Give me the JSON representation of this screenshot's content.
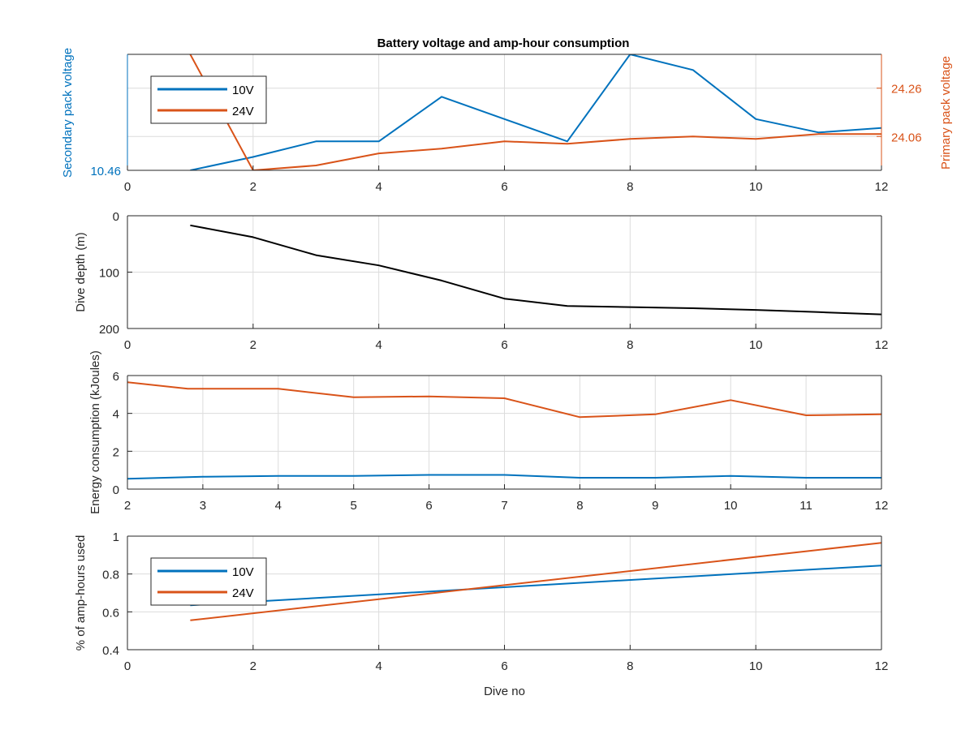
{
  "figure_title": "Battery voltage and amp-hour consumption",
  "colors": {
    "blue": "#0072BD",
    "orange": "#D95319",
    "black": "#000000",
    "grid": "#dcdcdc"
  },
  "chart_data": [
    {
      "type": "line",
      "title": "Battery voltage and amp-hour consumption",
      "xlabel": "",
      "ylabel_left": "Secondary pack voltage",
      "ylabel_right": "Primary pack voltage",
      "xlim": [
        0,
        12
      ],
      "xticks": [
        "0",
        "2",
        "4",
        "6",
        "8",
        "10",
        "12"
      ],
      "ylim_left": [
        10.46,
        10.72
      ],
      "yticks_left": [
        "10.46"
      ],
      "ylim_right": [
        23.92,
        24.4
      ],
      "yticks_right": [
        "24.06",
        "24.26"
      ],
      "grid": true,
      "legend": {
        "position": "top-left",
        "entries": [
          "10V",
          "24V"
        ]
      },
      "series": [
        {
          "name": "10V",
          "axis": "left",
          "color": "#0072BD",
          "x": [
            1,
            2,
            3,
            4,
            5,
            6,
            7,
            8,
            9,
            10,
            11,
            12
          ],
          "y": [
            10.46,
            10.49,
            10.525,
            10.525,
            10.625,
            10.575,
            10.525,
            10.72,
            10.685,
            10.575,
            10.545,
            10.555
          ]
        },
        {
          "name": "24V",
          "axis": "right",
          "color": "#D95319",
          "x": [
            1,
            2,
            3,
            4,
            5,
            6,
            7,
            8,
            9,
            10,
            11,
            12
          ],
          "y": [
            24.4,
            23.92,
            23.94,
            23.99,
            24.01,
            24.04,
            24.03,
            24.05,
            24.06,
            24.05,
            24.07,
            24.07
          ]
        }
      ]
    },
    {
      "type": "line",
      "xlabel": "",
      "ylabel": "Dive depth (m)",
      "xlim": [
        0,
        12
      ],
      "xticks": [
        "0",
        "2",
        "4",
        "6",
        "8",
        "10",
        "12"
      ],
      "ylim": [
        200,
        0
      ],
      "y_reversed": true,
      "yticks": [
        "0",
        "100",
        "200"
      ],
      "grid": true,
      "series": [
        {
          "color": "#000000",
          "x": [
            1,
            2,
            3,
            4,
            5,
            6,
            7,
            8,
            9,
            10,
            11,
            12
          ],
          "y": [
            17,
            38,
            70,
            88,
            115,
            147,
            160,
            162,
            164,
            167,
            171,
            175
          ]
        }
      ]
    },
    {
      "type": "line",
      "xlabel": "",
      "ylabel": "Energy consumption (kJoules)",
      "xlim": [
        2,
        12
      ],
      "xticks": [
        "2",
        "3",
        "4",
        "5",
        "6",
        "7",
        "8",
        "9",
        "10",
        "11",
        "12"
      ],
      "ylim": [
        0,
        6
      ],
      "yticks": [
        "0",
        "2",
        "4",
        "6"
      ],
      "grid": true,
      "series": [
        {
          "color": "#D95319",
          "x": [
            2,
            2.8,
            4,
            5,
            6,
            7,
            8,
            9,
            10,
            11,
            12
          ],
          "y": [
            5.65,
            5.3,
            5.3,
            4.85,
            4.9,
            4.8,
            3.8,
            3.95,
            4.7,
            3.9,
            3.95
          ]
        },
        {
          "color": "#0072BD",
          "x": [
            2,
            3,
            4,
            5,
            6,
            7,
            8,
            9,
            10,
            11,
            12
          ],
          "y": [
            0.55,
            0.65,
            0.7,
            0.7,
            0.75,
            0.75,
            0.6,
            0.6,
            0.7,
            0.6,
            0.6
          ]
        }
      ]
    },
    {
      "type": "line",
      "xlabel": "Dive no",
      "ylabel": "% of amp-hours used",
      "xlim": [
        0,
        12
      ],
      "xticks": [
        "0",
        "2",
        "4",
        "6",
        "8",
        "10",
        "12"
      ],
      "ylim": [
        0.4,
        1
      ],
      "yticks": [
        "0.4",
        "0.6",
        "0.8",
        "1"
      ],
      "grid": true,
      "legend": {
        "position": "top-left",
        "entries": [
          "10V",
          "24V"
        ]
      },
      "series": [
        {
          "name": "10V",
          "color": "#0072BD",
          "x": [
            1,
            12
          ],
          "y": [
            0.635,
            0.845
          ]
        },
        {
          "name": "24V",
          "color": "#D95319",
          "x": [
            1,
            12
          ],
          "y": [
            0.555,
            0.965
          ]
        }
      ]
    }
  ]
}
